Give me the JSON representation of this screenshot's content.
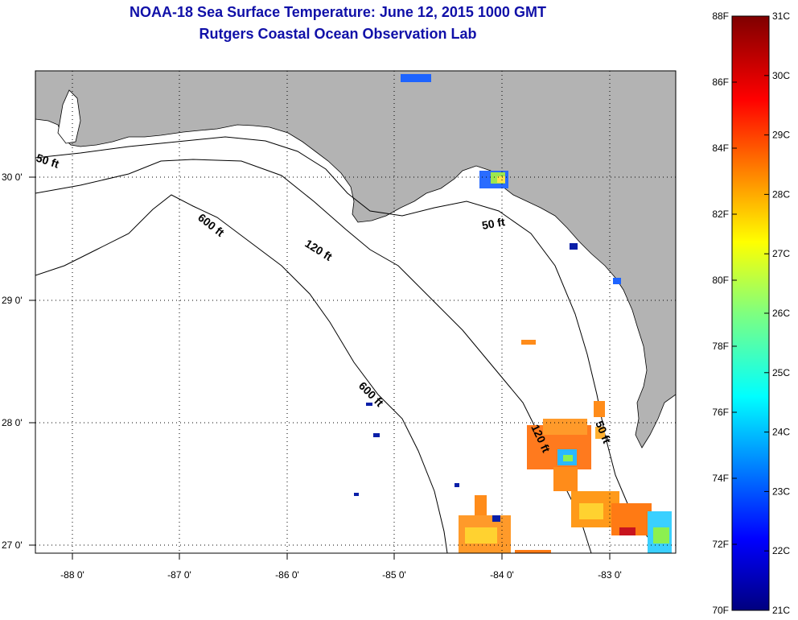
{
  "title": "NOAA-18 Sea Surface Temperature:  June 12, 2015 1000 GMT",
  "subtitle": "Rutgers Coastal Ocean Observation Lab",
  "axes": {
    "longitude_ticks": [
      "-88 0'",
      "-87 0'",
      "-86 0'",
      "-85 0'",
      "-84 0'",
      "-83 0'"
    ],
    "latitude_ticks": [
      "30 0'",
      "29 0'",
      "28 0'",
      "27 0'"
    ]
  },
  "contours": [
    {
      "label": "50 ft",
      "depth_ft": 50
    },
    {
      "label": "120 ft",
      "depth_ft": 120
    },
    {
      "label": "600 ft",
      "depth_ft": 600
    },
    {
      "label": "600 ft",
      "depth_ft": 600
    },
    {
      "label": "120 ft",
      "depth_ft": 120
    },
    {
      "label": "50 ft",
      "depth_ft": 50
    },
    {
      "label": "50 ft",
      "depth_ft": 50
    }
  ],
  "colorbar": {
    "fahrenheit_labels": [
      "88F",
      "86F",
      "84F",
      "82F",
      "80F",
      "78F",
      "76F",
      "74F",
      "72F",
      "70F"
    ],
    "celsius_labels": [
      "31C",
      "30C",
      "29C",
      "28C",
      "27C",
      "26C",
      "25C",
      "24C",
      "23C",
      "22C",
      "21C"
    ]
  },
  "colors": {
    "land": "#b3b3b3",
    "title": "#1010a8",
    "water": "#ffffff"
  }
}
